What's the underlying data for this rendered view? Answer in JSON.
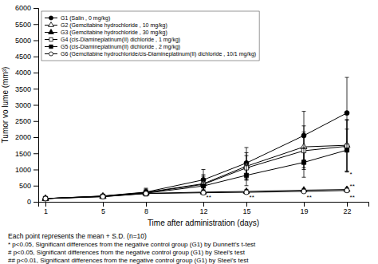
{
  "chart_data": {
    "type": "line",
    "x": [
      1,
      5,
      8,
      12,
      15,
      19,
      22
    ],
    "series": [
      {
        "name": "G1 (Salin , 0 mg/kg)",
        "color": "black",
        "marker": "filled-circle",
        "values": [
          100,
          180,
          300,
          680,
          1200,
          2050,
          2750
        ],
        "errors": [
          20,
          40,
          120,
          320,
          480,
          750,
          1100
        ]
      },
      {
        "name": "G2 (Gemcitabine hydrochloride , 10 mg/kg)",
        "color": "black",
        "marker": "open-triangle",
        "values": [
          100,
          175,
          290,
          560,
          1100,
          1700,
          1750
        ],
        "errors": [
          20,
          38,
          105,
          280,
          420,
          650,
          800
        ]
      },
      {
        "name": "G3 (Gemcitabine hydrochloride , 30 mg/kg)",
        "color": "black",
        "marker": "filled-triangle",
        "values": [
          100,
          160,
          260,
          300,
          320,
          360,
          380
        ],
        "errors": [
          15,
          28,
          55,
          70,
          65,
          50,
          60
        ]
      },
      {
        "name": "G4 (cis-Diamineplatinum(II) dichloride , 1 mg/kg)",
        "color": "black",
        "marker": "open-square",
        "values": [
          100,
          172,
          280,
          540,
          1050,
          1580,
          1720
        ],
        "errors": [
          18,
          35,
          95,
          250,
          380,
          580,
          800
        ]
      },
      {
        "name": "G5 (cis-Diamineplatinum(II) dichloride , 2 mg/kg)",
        "color": "black",
        "marker": "filled-square",
        "values": [
          100,
          168,
          265,
          490,
          820,
          1220,
          1600
        ],
        "errors": [
          16,
          32,
          85,
          220,
          320,
          460,
          650
        ]
      },
      {
        "name": "G6 (Gemcitabine hydrochloride/cis-Diamineplatinum(II) dichloride , 10/1 mg/kg)",
        "color": "black",
        "marker": "open-circle",
        "values": [
          100,
          158,
          255,
          280,
          295,
          320,
          350
        ],
        "errors": [
          14,
          26,
          50,
          60,
          58,
          48,
          58
        ]
      }
    ],
    "xlabel": "Time after administration (days)",
    "ylabel": "Tumor vo lume (mm³)",
    "xlim": [
      0.5,
      23.5
    ],
    "ylim": [
      0,
      6000
    ],
    "xticks": [
      1,
      5,
      8,
      12,
      15,
      19,
      22
    ],
    "yticks": [
      0,
      500,
      1000,
      1500,
      2000,
      2500,
      3000,
      3500,
      4000,
      4500,
      5000,
      5500,
      6000
    ],
    "legend": "upper left",
    "annotations": [
      {
        "x": 12.2,
        "y": 80,
        "text": "**"
      },
      {
        "x": 15.2,
        "y": 80,
        "text": "**"
      },
      {
        "x": 19.2,
        "y": 80,
        "text": "**"
      },
      {
        "x": 22.2,
        "y": 80,
        "text": "**"
      },
      {
        "x": 22.2,
        "y": 780,
        "text": "*"
      },
      {
        "x": 22.2,
        "y": 420,
        "text": "**"
      }
    ],
    "footnotes": [
      "Each point represents the mean + S.D.  (n=10)",
      "* p<0.05, Significant differences from the negative control group (G1) by Dunnett’s t-test",
      "# p<0.05, Significant differences from the negative control group (G1) by Steel’s test",
      "## p<0.01, Significant differences from the negative control group (G1) by Steel’s test"
    ]
  }
}
